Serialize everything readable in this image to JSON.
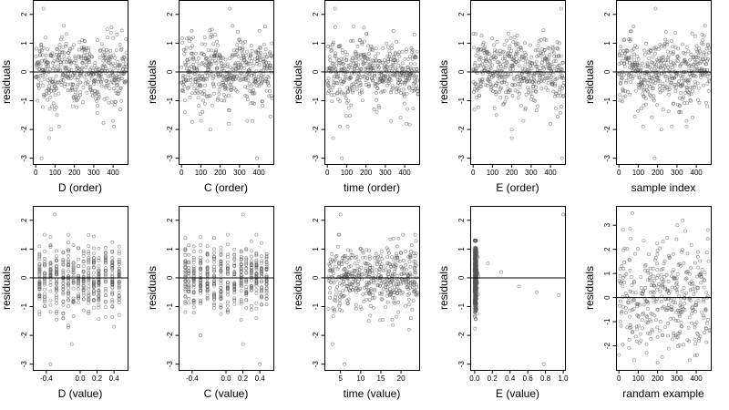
{
  "chart_data": [
    {
      "type": "scatter",
      "xlabel": "D (order)",
      "ylabel": "residuals",
      "xlim": [
        -15,
        475
      ],
      "ylim": [
        -3.2,
        2.5
      ],
      "x_ticks": [
        0,
        100,
        200,
        300,
        400
      ],
      "y_ticks": [
        -3,
        -2,
        -1,
        0,
        1,
        2
      ],
      "reference_line": 0,
      "points_description": "sample residuals plotted against their sorted order, roughly 470 points; bulk within about -1 to 1, outliers near 2.2 and -3",
      "points": [
        [
          40,
          2.2
        ],
        [
          30,
          -3.0
        ],
        [
          70,
          -2.3
        ],
        [
          80,
          -2.0
        ],
        [
          110,
          -1.5
        ],
        [
          120,
          -1.9
        ],
        [
          400,
          -1.7
        ],
        [
          405,
          -1.9
        ],
        [
          240,
          1.1
        ],
        [
          420,
          1.3
        ],
        [
          320,
          1.1
        ],
        [
          200,
          -1.0
        ]
      ]
    },
    {
      "type": "scatter",
      "xlabel": "C (order)",
      "ylabel": "residuals",
      "xlim": [
        -15,
        475
      ],
      "ylim": [
        -3.2,
        2.5
      ],
      "x_ticks": [
        0,
        100,
        200,
        300,
        400
      ],
      "y_ticks": [
        -3,
        -2,
        -1,
        0,
        1,
        2
      ],
      "reference_line": 0,
      "points_description": "sample residuals plotted against their sorted order, roughly 470 points; bulk within about -1 to 1, outliers near 2.2 and -3",
      "points": [
        [
          250,
          2.2
        ],
        [
          390,
          -3.0
        ],
        [
          150,
          -2.0
        ],
        [
          245,
          -1.8
        ],
        [
          340,
          -1.7
        ],
        [
          120,
          1.2
        ],
        [
          60,
          1.2
        ]
      ]
    },
    {
      "type": "scatter",
      "xlabel": "time (order)",
      "ylabel": "residuals",
      "xlim": [
        -15,
        475
      ],
      "ylim": [
        -3.2,
        2.5
      ],
      "x_ticks": [
        0,
        100,
        200,
        300,
        400
      ],
      "y_ticks": [
        -3,
        -2,
        -1,
        0,
        1,
        2
      ],
      "reference_line": 0,
      "points_description": "sample residuals plotted against their sorted order, roughly 470 points; bulk within about -1 to 1, outliers near 2.2 and -3",
      "points": [
        [
          40,
          2.2
        ],
        [
          75,
          -3.0
        ],
        [
          30,
          -2.3
        ],
        [
          65,
          -1.9
        ],
        [
          330,
          -1.7
        ],
        [
          410,
          -1.8
        ],
        [
          450,
          1.3
        ]
      ]
    },
    {
      "type": "scatter",
      "xlabel": "E (order)",
      "ylabel": "residuals",
      "xlim": [
        -15,
        475
      ],
      "ylim": [
        -3.2,
        2.5
      ],
      "x_ticks": [
        0,
        100,
        200,
        300,
        400
      ],
      "y_ticks": [
        -3,
        -2,
        -1,
        0,
        1,
        2
      ],
      "reference_line": 0,
      "points_description": "sample residuals plotted against their sorted order, roughly 470 points; bulk within about -1 to 1, outliers near 2.2 and -3",
      "points": [
        [
          455,
          2.2
        ],
        [
          460,
          -3.0
        ],
        [
          200,
          -2.3
        ],
        [
          200,
          -2.0
        ],
        [
          260,
          -1.7
        ],
        [
          400,
          -1.8
        ],
        [
          120,
          -1.5
        ]
      ]
    },
    {
      "type": "scatter",
      "xlabel": "sample index",
      "ylabel": "residuals",
      "xlim": [
        -15,
        475
      ],
      "ylim": [
        -3.2,
        2.5
      ],
      "x_ticks": [
        0,
        100,
        200,
        300,
        400
      ],
      "y_ticks": [
        -3,
        -2,
        -1,
        0,
        1,
        2
      ],
      "reference_line": 0,
      "points_description": "sample residuals plotted against their sorted order, roughly 470 points; bulk within about -1 to 1, outliers near 2.2 and -3",
      "points": [
        [
          190,
          2.2
        ],
        [
          185,
          -3.0
        ],
        [
          220,
          -2.0
        ],
        [
          350,
          -1.7
        ],
        [
          350,
          -1.9
        ],
        [
          430,
          1.3
        ]
      ]
    },
    {
      "type": "scatter",
      "xlabel": "D (value)",
      "ylabel": "residuals",
      "xlim": [
        -0.56,
        0.56
      ],
      "ylim": [
        -3.2,
        2.5
      ],
      "x_ticks": [
        -0.4,
        0.0,
        0.2,
        0.4
      ],
      "x_tick_labels": [
        "-0.4",
        "0.0",
        "0.2",
        "0.4"
      ],
      "y_ticks": [
        -3,
        -2,
        -1,
        0,
        1,
        2
      ],
      "reference_line": 0,
      "points_description": "residuals grouped in vertical columns at discrete x levels between about -0.5 and 0.5",
      "points": [
        [
          -0.3,
          2.2
        ],
        [
          -0.35,
          -3.0
        ],
        [
          -0.1,
          -2.3
        ],
        [
          0.4,
          -1.7
        ],
        [
          0.1,
          1.1
        ]
      ]
    },
    {
      "type": "scatter",
      "xlabel": "C (value)",
      "ylabel": "residuals",
      "xlim": [
        -0.56,
        0.56
      ],
      "ylim": [
        -3.2,
        2.5
      ],
      "x_ticks": [
        -0.4,
        0.0,
        0.2,
        0.4
      ],
      "x_tick_labels": [
        "-0.4",
        "0.0",
        "0.2",
        "0.4"
      ],
      "y_ticks": [
        -3,
        -2,
        -1,
        0,
        1,
        2
      ],
      "reference_line": 0,
      "points_description": "residuals grouped in vertical columns at discrete x levels between about -0.5 and 0.5",
      "points": [
        [
          0.2,
          2.2
        ],
        [
          0.4,
          -3.0
        ],
        [
          -0.3,
          -2.0
        ],
        [
          0.2,
          -2.3
        ]
      ]
    },
    {
      "type": "scatter",
      "xlabel": "time (value)",
      "ylabel": "residuals",
      "xlim": [
        1,
        24.5
      ],
      "ylim": [
        -3.2,
        2.5
      ],
      "x_ticks": [
        5,
        10,
        15,
        20
      ],
      "y_ticks": [
        -3,
        -2,
        -1,
        0,
        1,
        2
      ],
      "reference_line": 0,
      "points_description": "residuals at time values from about 2 to 24, densest near 11-12",
      "points": [
        [
          5,
          2.2
        ],
        [
          6,
          -3.0
        ],
        [
          3,
          -2.3
        ],
        [
          12,
          -1.5
        ],
        [
          22,
          -1.8
        ]
      ]
    },
    {
      "type": "scatter",
      "xlabel": "E (value)",
      "ylabel": "residuals",
      "xlim": [
        -0.05,
        1.02
      ],
      "ylim": [
        -3.2,
        2.5
      ],
      "x_ticks": [
        0.0,
        0.2,
        0.4,
        0.6,
        0.8,
        1.0
      ],
      "x_tick_labels": [
        "0.0",
        "0.2",
        "0.4",
        "0.6",
        "0.8",
        "1.0"
      ],
      "y_ticks": [
        -3,
        -2,
        -1,
        0,
        1,
        2
      ],
      "reference_line": 0,
      "points_description": "nearly all residuals stacked at x near 0; a few scattered points out to x = 1",
      "points": [
        [
          1.0,
          2.2
        ],
        [
          0.78,
          -3.0
        ],
        [
          0.7,
          -0.5
        ],
        [
          0.95,
          -0.6
        ],
        [
          0.3,
          0.2
        ],
        [
          0.5,
          -0.3
        ],
        [
          0.15,
          0.5
        ]
      ]
    },
    {
      "type": "scatter",
      "xlabel": "randam example",
      "ylabel": "residuals",
      "xlim": [
        -15,
        475
      ],
      "ylim": [
        -3.0,
        3.8
      ],
      "x_ticks": [
        0,
        100,
        200,
        300,
        400
      ],
      "y_ticks": [
        -2,
        -1,
        0,
        1,
        2,
        3
      ],
      "reference_line": 0,
      "points_description": "random normal residuals spread evenly from about -2.7 to 3.5",
      "points": [
        [
          70,
          3.5
        ],
        [
          200,
          -2.7
        ],
        [
          330,
          3.2
        ],
        [
          460,
          2.8
        ]
      ]
    }
  ]
}
